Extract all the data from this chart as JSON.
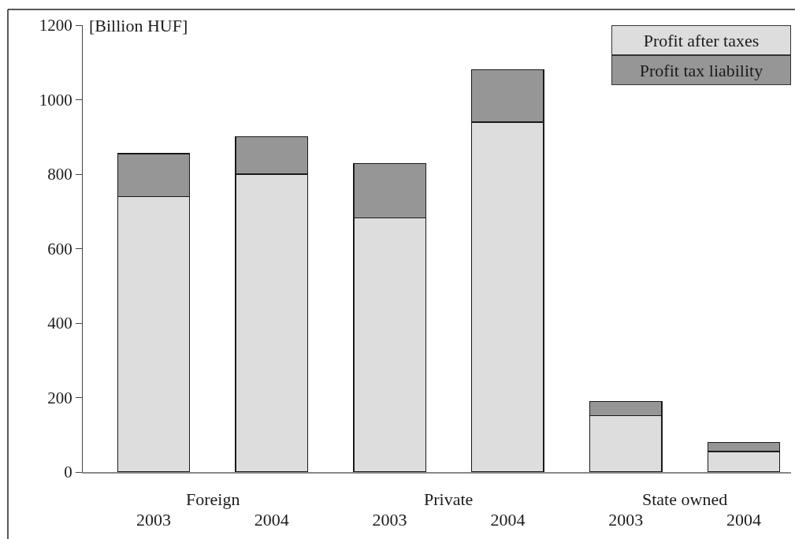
{
  "chart_data": {
    "type": "bar",
    "stacked": true,
    "ylabel": "[Billion HUF]",
    "categories": [
      "2003",
      "2004",
      "2003",
      "2004",
      "2003",
      "2004"
    ],
    "annotations": [
      "Foreign",
      "Private",
      "State owned"
    ],
    "series": [
      {
        "name": "Profit after taxes",
        "color": "#dddddd",
        "values": [
          740,
          800,
          682,
          940,
          152,
          55
        ]
      },
      {
        "name": "Profit tax liability",
        "color": "#969696",
        "values": [
          115,
          100,
          146,
          140,
          38,
          25
        ]
      }
    ],
    "ylim": [
      0,
      1200
    ],
    "yticks": [
      0,
      200,
      400,
      600,
      800,
      1000,
      1200
    ],
    "legend": "top right",
    "grid": false
  }
}
